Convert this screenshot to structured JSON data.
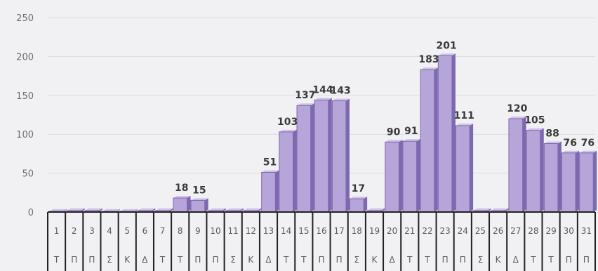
{
  "chart_data": {
    "type": "bar",
    "categories": [
      "1",
      "2",
      "3",
      "4",
      "5",
      "6",
      "7",
      "8",
      "9",
      "10",
      "11",
      "12",
      "13",
      "14",
      "15",
      "16",
      "17",
      "18",
      "19",
      "20",
      "21",
      "22",
      "23",
      "24",
      "25",
      "26",
      "27",
      "28",
      "29",
      "30",
      "31"
    ],
    "day_letters": [
      "Τ",
      "Π",
      "Π",
      "Σ",
      "Κ",
      "Δ",
      "Τ",
      "Τ",
      "Π",
      "Π",
      "Σ",
      "Κ",
      "Δ",
      "Τ",
      "Τ",
      "Π",
      "Π",
      "Σ",
      "Κ",
      "Δ",
      "Τ",
      "Τ",
      "Π",
      "Π",
      "Σ",
      "Κ",
      "Δ",
      "Τ",
      "Τ",
      "Π",
      "Π"
    ],
    "values": [
      1,
      2,
      2,
      1,
      1,
      2,
      2,
      18,
      15,
      2,
      2,
      2,
      51,
      103,
      137,
      144,
      143,
      17,
      2,
      90,
      91,
      183,
      201,
      111,
      2,
      2,
      120,
      105,
      88,
      76,
      76
    ],
    "data_labels": [
      "",
      "",
      "",
      "",
      "",
      "",
      "",
      "18",
      "15",
      "",
      "",
      "",
      "51",
      "103",
      "137",
      "144",
      "143",
      "17",
      "",
      "90",
      "91",
      "183",
      "201",
      "111",
      "",
      "",
      "120",
      "105",
      "88",
      "76",
      "76"
    ],
    "yticks": [
      0,
      50,
      100,
      150,
      200,
      250
    ],
    "ylim": [
      0,
      250
    ],
    "grid": true,
    "colors": {
      "bar_face": "#b6a5d8",
      "bar_shade": "#7e68b0",
      "bar_top": "#cfc3ea",
      "grid": "#dcdcdc",
      "table_line": "#222222"
    }
  }
}
